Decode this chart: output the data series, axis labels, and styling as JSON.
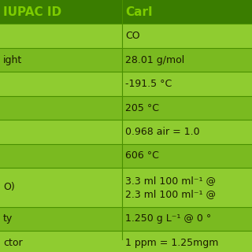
{
  "header_bg": "#3a7d00",
  "header_text_color": "#7dcc00",
  "cell_bg_light": "#8fcc30",
  "cell_bg_dark": "#7aba20",
  "border_color": "#4a9000",
  "text_color": "#1a1a00",
  "col1_header": "IUPAC ID",
  "col2_header": "CarI",
  "rows": [
    [
      "",
      "CO"
    ],
    [
      "ight",
      "28.01 g/mol"
    ],
    [
      "",
      "-191.5 °C"
    ],
    [
      "",
      "205 °C"
    ],
    [
      "",
      "0.968 air = 1.0"
    ],
    [
      "",
      "606 °C"
    ],
    [
      "O)",
      "3.3 ml 100 ml⁻¹ @\n2.3 ml 100 ml⁻¹ @"
    ],
    [
      "ty",
      "1.250 g L⁻¹ @ 0 °"
    ],
    [
      "ctor",
      "1 ppm = 1.25mgm"
    ]
  ],
  "figsize": [
    3.2,
    3.2
  ],
  "dpi": 100
}
